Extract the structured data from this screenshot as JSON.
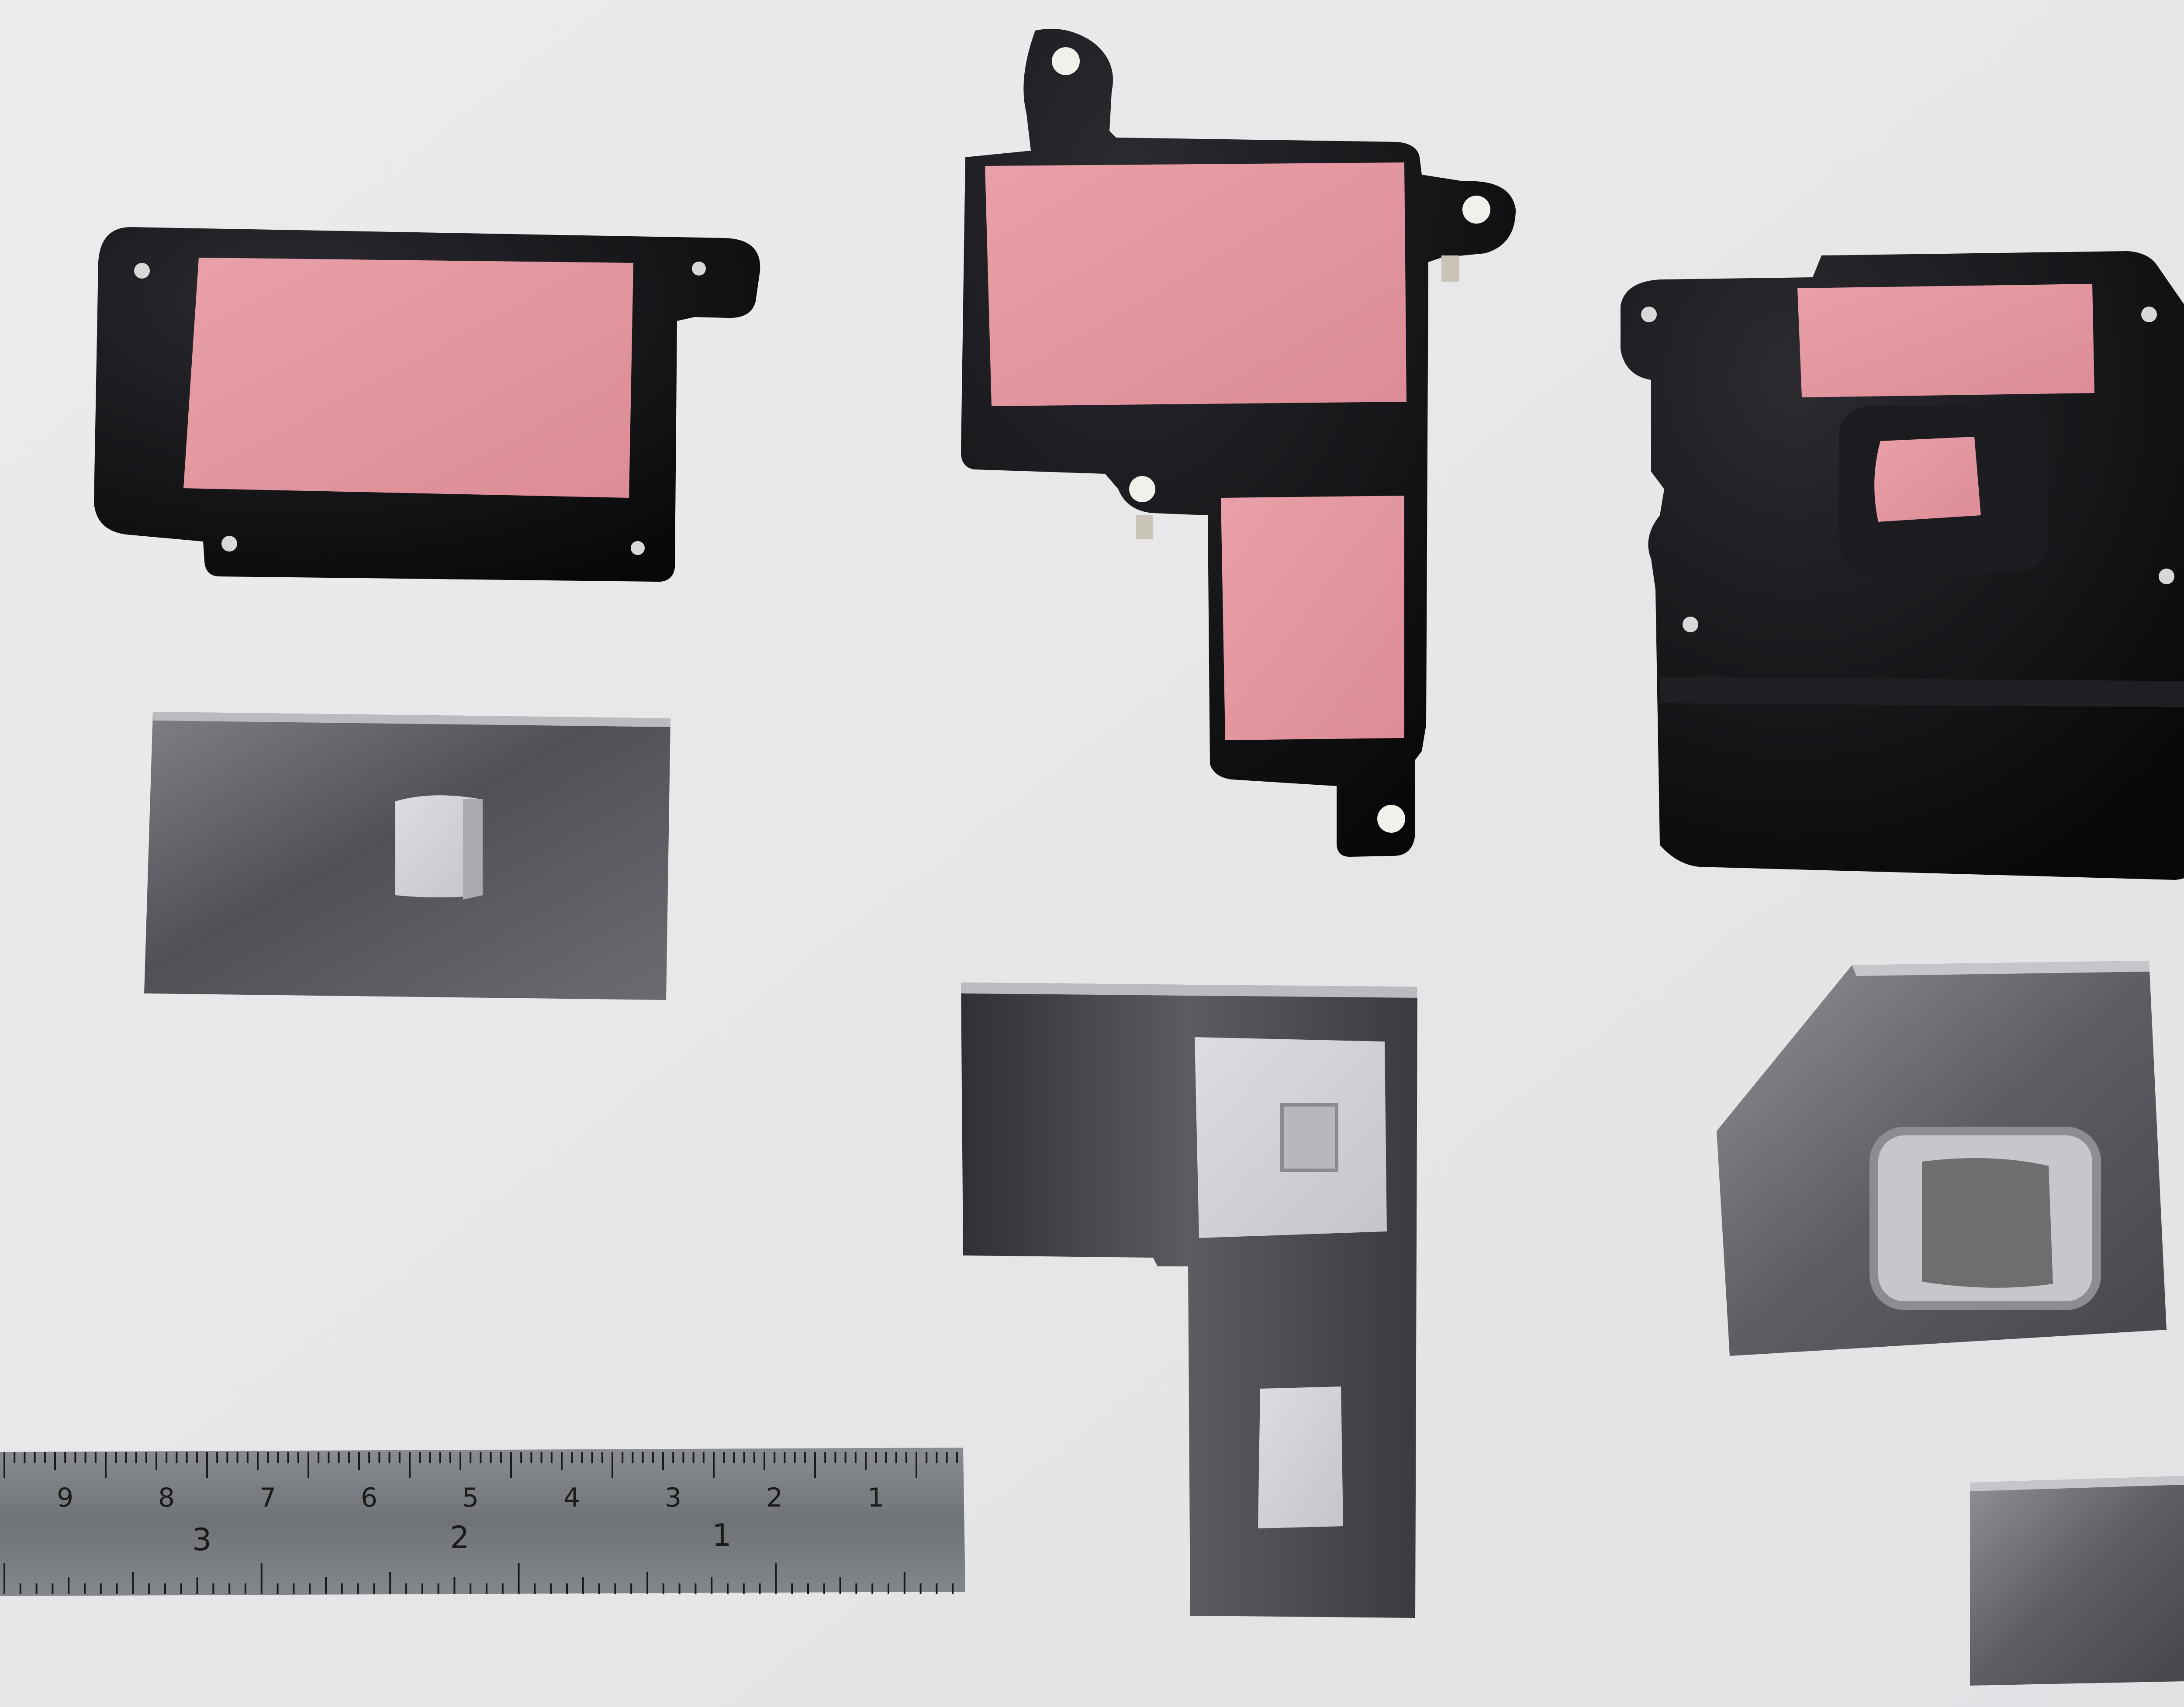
{
  "photo": {
    "colors": {
      "background": "#e9e9eb",
      "plate_black": "#0c0c0e",
      "plate_gloss": "#2a2a2e",
      "thermal_pad_pink": "#e79ba3",
      "thermal_pad_pink_dark": "#d98993",
      "thermal_pad_gray": "#d2d3d5",
      "thermal_pad_gray_dark": "#6e6e70",
      "steel": "#5d5f64",
      "steel_light": "#9a9ca0",
      "standoff_white": "#f2f0ea",
      "ruler_steel": "#7d8085",
      "ruler_marks": "#1a1a1a"
    },
    "objects": [
      {
        "name": "black-heatsink-plate-left",
        "pads": [
          "pink-thermal-pad"
        ]
      },
      {
        "name": "black-heatsink-plate-center",
        "pads": [
          "pink-thermal-pad-large",
          "pink-thermal-pad-small"
        ]
      },
      {
        "name": "black-heatsink-plate-right",
        "pads": [
          "pink-thermal-pad-strip",
          "pink-thermal-pad-square"
        ]
      },
      {
        "name": "emi-shield-can-left",
        "pads": [
          "gray-thermal-pad"
        ]
      },
      {
        "name": "emi-shield-can-center",
        "pads": [
          "gray-thermal-pad-with-cutout",
          "gray-thermal-pad-small"
        ]
      },
      {
        "name": "emi-shield-can-right",
        "pads": [
          "gray-thermal-pad-dark"
        ]
      },
      {
        "name": "emi-shield-can-small",
        "pads": []
      },
      {
        "name": "steel-ruler",
        "pads": []
      }
    ]
  },
  "ruler": {
    "top_scale": [
      "9",
      "8",
      "7",
      "6",
      "5",
      "4",
      "3",
      "2",
      "1"
    ],
    "bottom_scale": [
      "3",
      "2",
      "1"
    ]
  }
}
